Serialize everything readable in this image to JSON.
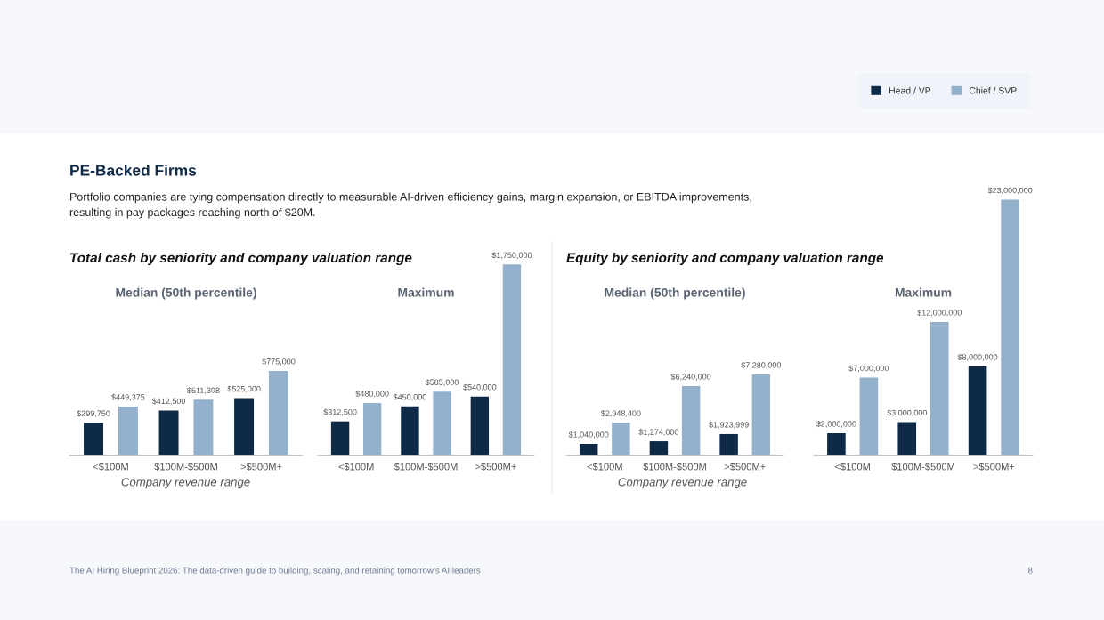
{
  "chart_data": [
    {
      "type": "bar",
      "title": "Median (50th percentile)",
      "categories": [
        "<$100M",
        "$100M-$500M",
        ">$500M+"
      ],
      "tick_labels": "x",
      "legend": "top right",
      "annotations": [
        "Total cash by seniority and company valuation range",
        "Company revenue range",
        "PE-Backed Firms",
        "Portfolio companies are tying compensation directly to measurable AI-driven efficiency gains, margin expansion, or EBITDA improvements,\nresulting in pay packages reaching north of $20M.",
        "The AI Hiring Blueprint 2026: The data-driven guide to building, scaling, and retaining tomorrow’s AI leaders",
        "8"
      ],
      "series": [
        {
          "name": "Head / VP",
          "color": "#0f2a47",
          "values": [
            299750,
            412500,
            525000
          ],
          "value_labels": [
            "$299,750",
            "$412,500",
            "$525,000"
          ]
        },
        {
          "name": "Chief / SVP",
          "color": "#93b1cc",
          "values": [
            449375,
            511308,
            775000
          ],
          "value_labels": [
            "$449,375",
            "$511,308",
            "$775,000"
          ]
        }
      ]
    },
    {
      "type": "bar",
      "title": "Maximum",
      "categories": [
        "<$100M",
        "$100M-$500M",
        ">$500M+"
      ],
      "tick_labels": "x",
      "series": [
        {
          "color": "#0f2a47",
          "values": [
            312500,
            450000,
            540000
          ],
          "value_labels": [
            "$312,500",
            "$450,000",
            "$540,000"
          ]
        },
        {
          "color": "#93b1cc",
          "values": [
            480000,
            585000,
            1750000
          ],
          "value_labels": [
            "$480,000",
            "$585,000",
            "$1,750,000"
          ]
        }
      ]
    },
    {
      "type": "bar",
      "title": "Median (50th percentile)",
      "categories": [
        "<$100M",
        "$100M-$500M",
        ">$500M+"
      ],
      "tick_labels": "x",
      "annotations": [
        "Equity by seniority and company valuation range",
        "Company revenue range"
      ],
      "series": [
        {
          "color": "#0f2a47",
          "values": [
            1040000,
            1274000,
            1923999
          ],
          "value_labels": [
            "$1,040,000",
            "$1,274,000",
            "$1,923,999"
          ]
        },
        {
          "color": "#93b1cc",
          "values": [
            2948400,
            6240000,
            7280000
          ],
          "value_labels": [
            "$2,948,400",
            "$6,240,000",
            "$7,280,000"
          ]
        }
      ]
    },
    {
      "type": "bar",
      "title": "Maximum",
      "categories": [
        "<$100M",
        "$100M-$500M",
        ">$500M+"
      ],
      "tick_labels": "x",
      "series": [
        {
          "color": "#0f2a47",
          "values": [
            2000000,
            3000000,
            8000000
          ],
          "value_labels": [
            "$2,000,000",
            "$3,000,000",
            "$8,000,000"
          ]
        },
        {
          "color": "#93b1cc",
          "values": [
            7000000,
            12000000,
            23000000
          ],
          "value_labels": [
            "$7,000,000",
            "$12,000,000",
            "$23,000,000"
          ]
        }
      ]
    }
  ]
}
